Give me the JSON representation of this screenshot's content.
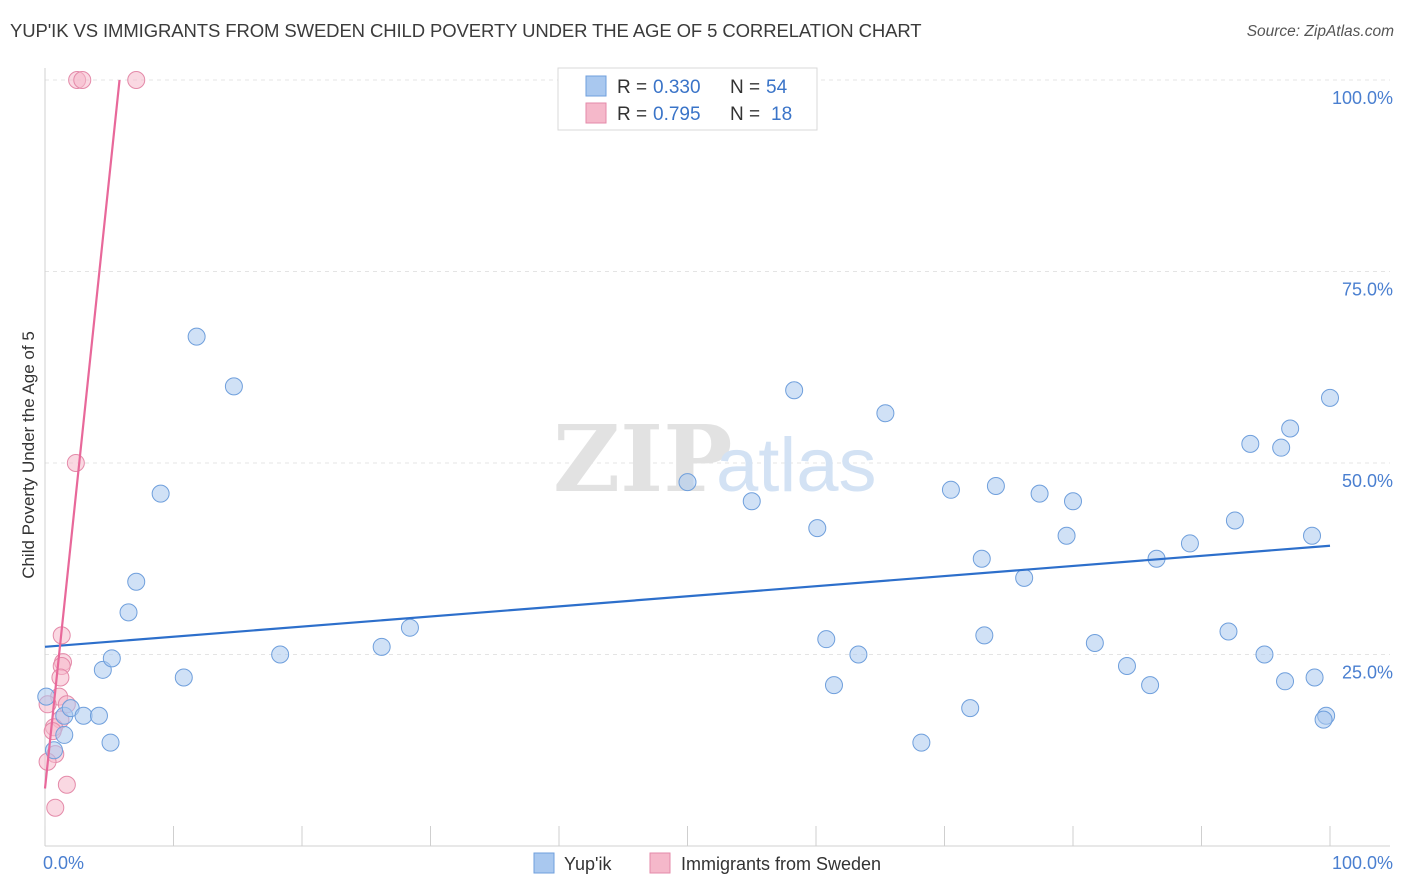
{
  "title": "YUP'IK VS IMMIGRANTS FROM SWEDEN CHILD POVERTY UNDER THE AGE OF 5 CORRELATION CHART",
  "source": "Source: ZipAtlas.com",
  "watermark": {
    "part1": "ZIP",
    "part2": "atlas"
  },
  "chart_data": {
    "type": "scatter",
    "title": "YUP'IK VS IMMIGRANTS FROM SWEDEN CHILD POVERTY UNDER THE AGE OF 5 CORRELATION CHART",
    "xlabel": "",
    "ylabel": "Child Poverty Under the Age of 5",
    "xlim": [
      0,
      100
    ],
    "ylim": [
      0,
      100
    ],
    "x_tick_labels": [
      "0.0%",
      "100.0%"
    ],
    "y_tick_labels": [
      "25.0%",
      "50.0%",
      "75.0%",
      "100.0%"
    ],
    "y_ticks": [
      25,
      50,
      75,
      100
    ],
    "grid": true,
    "legend_placement": "top-center",
    "colors": {
      "yupik": "#a9c8ef",
      "yupik_line": "#2d6fcb",
      "sweden": "#f5b8ca",
      "sweden_line": "#e8689a"
    },
    "legend": [
      {
        "r_label": "R =",
        "r_value": "0.330",
        "n_label": "N =",
        "n_value": "54"
      },
      {
        "r_label": "R =",
        "r_value": "0.795",
        "n_label": "N =",
        "n_value": "18"
      }
    ],
    "series": [
      {
        "name": "Yup'ik",
        "trend": {
          "x": [
            0,
            100
          ],
          "y": [
            26.0,
            39.2
          ]
        },
        "points": [
          [
            0.1,
            19.5
          ],
          [
            1.5,
            17.0
          ],
          [
            0.7,
            12.5
          ],
          [
            1.5,
            14.5
          ],
          [
            4.5,
            23.0
          ],
          [
            2.0,
            18.0
          ],
          [
            3.0,
            17.0
          ],
          [
            4.2,
            17.0
          ],
          [
            5.2,
            24.5
          ],
          [
            5.1,
            13.5
          ],
          [
            7.1,
            34.5
          ],
          [
            6.5,
            30.5
          ],
          [
            9.0,
            46.0
          ],
          [
            10.8,
            22.0
          ],
          [
            11.8,
            66.5
          ],
          [
            14.7,
            60.0
          ],
          [
            18.3,
            25.0
          ],
          [
            26.2,
            26.0
          ],
          [
            28.4,
            28.5
          ],
          [
            50.0,
            47.5
          ],
          [
            55.0,
            45.0
          ],
          [
            58.3,
            59.5
          ],
          [
            60.1,
            41.5
          ],
          [
            60.8,
            27.0
          ],
          [
            61.4,
            21.0
          ],
          [
            63.3,
            25.0
          ],
          [
            65.4,
            56.5
          ],
          [
            68.2,
            13.5
          ],
          [
            70.5,
            46.5
          ],
          [
            72.0,
            18.0
          ],
          [
            72.9,
            37.5
          ],
          [
            73.1,
            27.5
          ],
          [
            74.0,
            47.0
          ],
          [
            76.2,
            35.0
          ],
          [
            77.4,
            46.0
          ],
          [
            79.5,
            40.5
          ],
          [
            80.0,
            45.0
          ],
          [
            81.7,
            26.5
          ],
          [
            84.2,
            23.5
          ],
          [
            86.0,
            21.0
          ],
          [
            86.5,
            37.5
          ],
          [
            89.1,
            39.5
          ],
          [
            92.1,
            28.0
          ],
          [
            92.6,
            42.5
          ],
          [
            93.8,
            52.5
          ],
          [
            94.9,
            25.0
          ],
          [
            96.2,
            52.0
          ],
          [
            96.5,
            21.5
          ],
          [
            96.9,
            54.5
          ],
          [
            98.6,
            40.5
          ],
          [
            98.8,
            22.0
          ],
          [
            100.0,
            58.5
          ],
          [
            99.7,
            17.0
          ],
          [
            99.5,
            16.5
          ]
        ]
      },
      {
        "name": "Immigrants from Sweden",
        "trend": {
          "x": [
            0,
            5.8
          ],
          "y": [
            7.5,
            100
          ]
        },
        "points": [
          [
            2.5,
            100
          ],
          [
            2.9,
            100
          ],
          [
            7.1,
            100
          ],
          [
            2.4,
            50.0
          ],
          [
            1.3,
            27.5
          ],
          [
            1.4,
            24.0
          ],
          [
            1.3,
            23.5
          ],
          [
            1.2,
            22.0
          ],
          [
            1.1,
            19.5
          ],
          [
            1.7,
            18.5
          ],
          [
            0.2,
            18.5
          ],
          [
            1.2,
            16.5
          ],
          [
            0.7,
            15.5
          ],
          [
            0.6,
            15.0
          ],
          [
            0.8,
            12.0
          ],
          [
            0.2,
            11.0
          ],
          [
            1.7,
            8.0
          ],
          [
            0.8,
            5.0
          ]
        ]
      }
    ]
  },
  "bottom_legend": [
    "Yup'ik",
    "Immigrants from Sweden"
  ]
}
